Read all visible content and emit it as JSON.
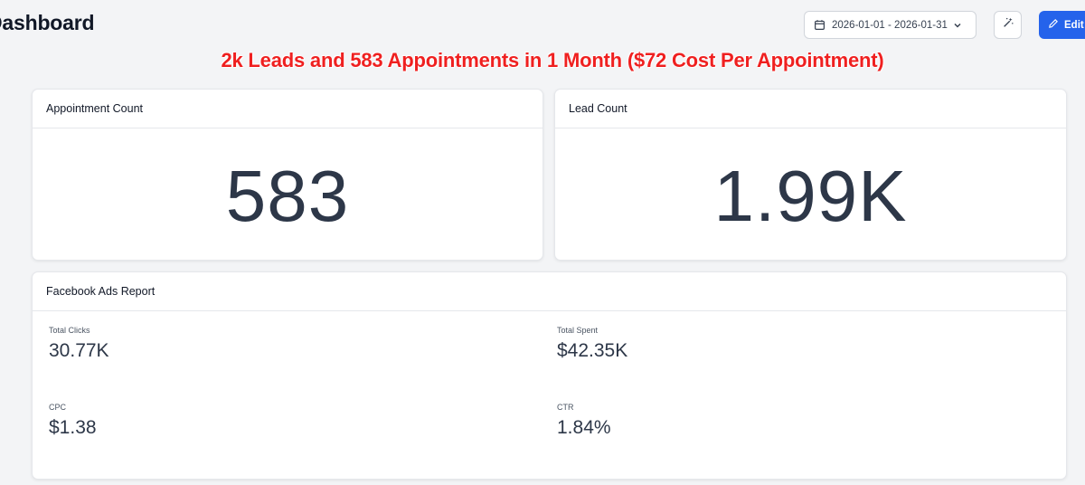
{
  "header": {
    "title": "Dashboard",
    "date_range": "2026-01-01 - 2026-01-31",
    "edit_label": "Edit Da"
  },
  "headline": "2k Leads and 583 Appointments in 1 Month ($72 Cost Per Appointment)",
  "cards": {
    "appointment": {
      "title": "Appointment Count",
      "value": "583"
    },
    "lead": {
      "title": "Lead Count",
      "value": "1.99K"
    }
  },
  "facebook_report": {
    "title": "Facebook Ads Report",
    "metrics": [
      {
        "label": "Total Clicks",
        "value": "30.77K"
      },
      {
        "label": "Total Spent",
        "value": "$42.35K"
      },
      {
        "label": "CPC",
        "value": "$1.38"
      },
      {
        "label": "CTR",
        "value": "1.84%"
      }
    ]
  },
  "colors": {
    "accent": "#2563eb",
    "headline": "#ef2020",
    "background": "#f3f4f6"
  },
  "icons": [
    "calendar-icon",
    "chevron-down-icon",
    "magic-wand-icon",
    "pencil-icon"
  ]
}
